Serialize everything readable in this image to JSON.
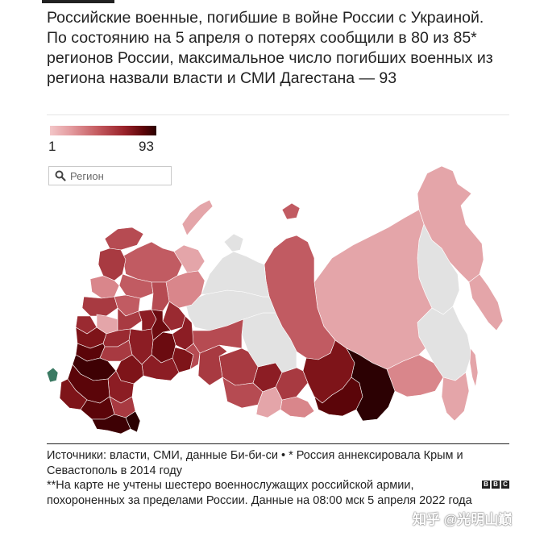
{
  "title": "Российские военные, погибшие в войне России с Украиной. По состоянию на 5 апреля о потерях сообщили в 80 из 85* регионов России, максимальное число погибших военных из региона назвали власти и СМИ Дагестана — 93",
  "legend": {
    "min": "1",
    "max": "93"
  },
  "search": {
    "placeholder": "Регион",
    "icon": "search-icon"
  },
  "colors": {
    "scale_low": "#f3c6c8",
    "scale_high": "#2a0001",
    "no_data": "#e2e2e2"
  },
  "sources": {
    "line1": "Источники: власти, СМИ, данные Би-би-си • * Россия аннексировала Крым и Севастополь в 2014 году",
    "line2": "**На карте не учтены шестеро военнослужащих российской армии, похороненных за пределами России. Данные на 08:00 мск 5 апреля 2022 года"
  },
  "logo": {
    "letters": [
      "B",
      "B",
      "C"
    ]
  },
  "watermark": "知乎 @光明山巅"
}
